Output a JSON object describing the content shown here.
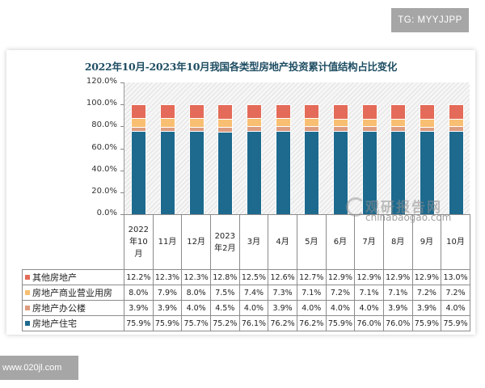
{
  "badges": {
    "top_right": "TG: MYYJJPP",
    "bottom_left": "www.020jl.com"
  },
  "watermark": {
    "cn": "观研报告网",
    "en": "chinabaogao.com"
  },
  "chart_data": {
    "type": "bar",
    "stacked": true,
    "title": "2022年10月-2023年10月我国各类型房地产投资累计值结构占比变化",
    "xlabel": "",
    "ylabel": "",
    "ylim": [
      0,
      120
    ],
    "y_ticks": [
      "120.0%",
      "100.0%",
      "80.0%",
      "60.0%",
      "40.0%",
      "20.0%",
      "0.0%"
    ],
    "grid": false,
    "legend_position": "table-left",
    "categories": [
      "2022年10月",
      "11月",
      "12月",
      "2023年2月",
      "3月",
      "4月",
      "5月",
      "6月",
      "7月",
      "8月",
      "9月",
      "10月"
    ],
    "series": [
      {
        "name": "其他房地产",
        "color": "#e46b59",
        "values": [
          12.2,
          12.3,
          12.3,
          12.8,
          12.5,
          12.6,
          12.7,
          12.9,
          12.9,
          12.9,
          12.9,
          13.0
        ],
        "labels": [
          "12.2%",
          "12.3%",
          "12.3%",
          "12.8%",
          "12.5%",
          "12.6%",
          "12.7%",
          "12.9%",
          "12.9%",
          "12.9%",
          "12.9%",
          "13.0%"
        ]
      },
      {
        "name": "房地产商业营业用房",
        "color": "#f8bf72",
        "values": [
          8.0,
          7.9,
          8.0,
          7.5,
          7.4,
          7.3,
          7.1,
          7.2,
          7.1,
          7.1,
          7.2,
          7.2
        ],
        "labels": [
          "8.0%",
          "7.9%",
          "8.0%",
          "7.5%",
          "7.4%",
          "7.3%",
          "7.1%",
          "7.2%",
          "7.1%",
          "7.1%",
          "7.2%",
          "7.2%"
        ]
      },
      {
        "name": "房地产办公楼",
        "color": "#dd9c80",
        "values": [
          3.9,
          3.9,
          4.0,
          4.5,
          4.0,
          3.9,
          4.0,
          4.0,
          4.0,
          3.9,
          3.9,
          4.0
        ],
        "labels": [
          "3.9%",
          "3.9%",
          "4.0%",
          "4.5%",
          "4.0%",
          "3.9%",
          "4.0%",
          "4.0%",
          "4.0%",
          "3.9%",
          "3.9%",
          "4.0%"
        ]
      },
      {
        "name": "房地产住宅",
        "color": "#1d6a8e",
        "values": [
          75.9,
          75.9,
          75.7,
          75.2,
          76.1,
          76.2,
          76.2,
          75.9,
          76.0,
          76.0,
          75.9,
          75.9
        ],
        "labels": [
          "75.9%",
          "75.9%",
          "75.7%",
          "75.2%",
          "76.1%",
          "76.2%",
          "76.2%",
          "75.9%",
          "76.0%",
          "76.0%",
          "75.9%",
          "75.9%"
        ]
      }
    ],
    "stack_order_bottom_to_top": [
      "房地产住宅",
      "房地产办公楼",
      "房地产商业营业用房",
      "其他房地产"
    ]
  }
}
